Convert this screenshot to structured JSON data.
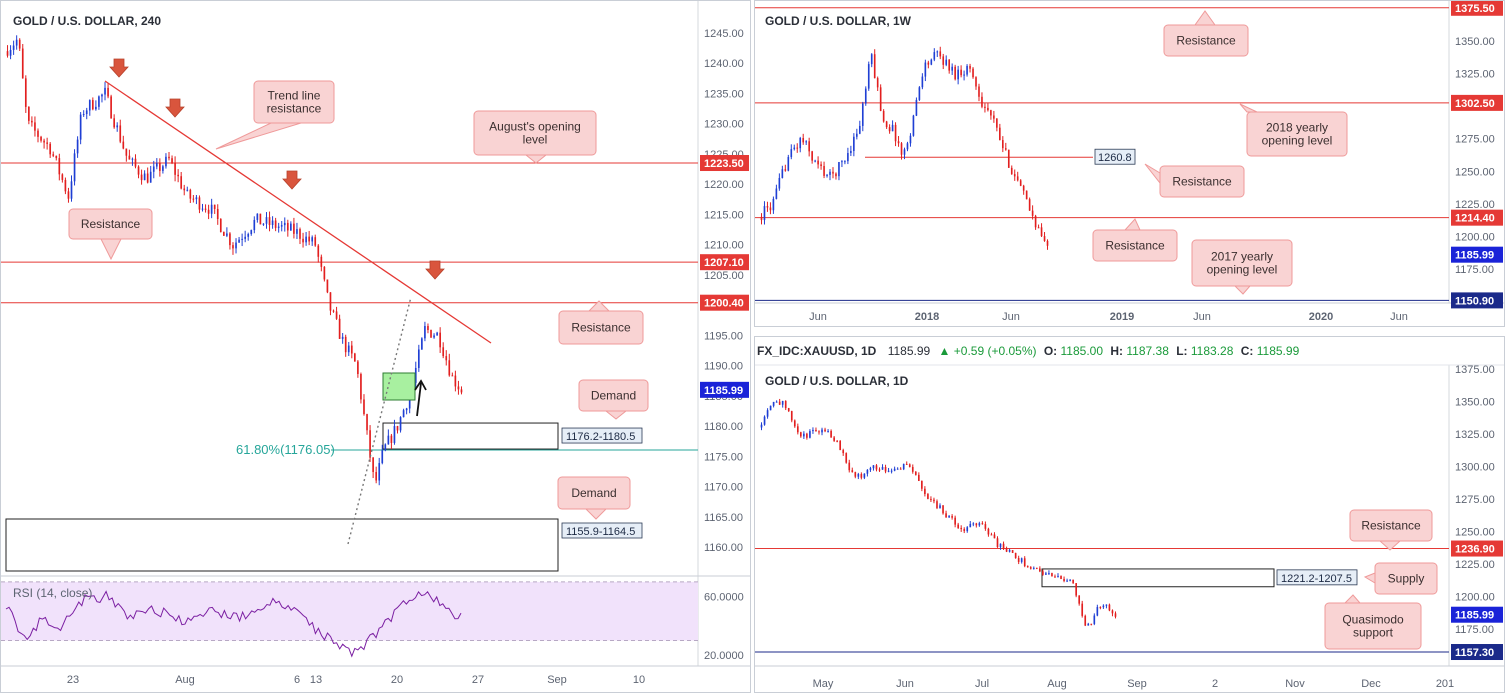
{
  "colors": {
    "up": "#1f3fd4",
    "down": "#e21f1f",
    "level": "#e53935",
    "fib": "#26a69a",
    "callout_bg": "#f9d3d3",
    "callout_border": "#ef9a9a",
    "label_red": "#e53935",
    "label_blue": "#1a23d8",
    "label_navy": "#1b2a8a",
    "rsi_fill": "#f1e2fb",
    "rsi_line": "#7b1fa2",
    "green_box": "#a8f0a0",
    "axis_text": "#5d6472"
  },
  "chart_data": [
    {
      "id": "h4",
      "type": "candlestick",
      "title": "GOLD / U.S. DOLLAR, 240",
      "ylim": [
        1155,
        1248
      ],
      "y_ticks": [
        "1245.00",
        "1240.00",
        "1235.00",
        "1230.00",
        "1225.00",
        "1220.00",
        "1215.00",
        "1210.00",
        "1205.00",
        "1200.00",
        "1195.00",
        "1190.00",
        "1185.00",
        "1180.00",
        "1175.00",
        "1170.00",
        "1165.00",
        "1160.00"
      ],
      "x_ticks": [
        "23",
        "Aug",
        "6",
        "13",
        "20",
        "27",
        "Sep",
        "10"
      ],
      "price_labels": [
        {
          "value": 1223.5,
          "text": "1223.50",
          "style": "red"
        },
        {
          "value": 1207.1,
          "text": "1207.10",
          "style": "red"
        },
        {
          "value": 1200.4,
          "text": "1200.40",
          "style": "red"
        },
        {
          "value": 1185.99,
          "text": "1185.99",
          "style": "blue"
        }
      ],
      "levels": [
        1223.5,
        1207.1,
        1200.4
      ],
      "fib": {
        "value": 1176.05,
        "text": "61.80%(1176.05)"
      },
      "zones": [
        {
          "text": "1176.2-1180.5",
          "low": 1176.2,
          "high": 1180.5
        },
        {
          "text": "1155.9-1164.5",
          "low": 1155.9,
          "high": 1164.5
        }
      ],
      "callouts": [
        "Trend line resistance",
        "August's opening level",
        "Resistance",
        "Resistance",
        "Demand",
        "Demand"
      ],
      "rsi": {
        "label": "RSI (14, close)",
        "ticks": [
          "60.0000",
          "20.0000"
        ],
        "ylim": [
          14,
          72
        ],
        "bands": [
          70,
          30
        ]
      }
    },
    {
      "id": "weekly",
      "type": "candlestick",
      "title": "GOLD / U.S. DOLLAR, 1W",
      "ylim": [
        1147,
        1378
      ],
      "y_ticks": [
        "1350.00",
        "1325.00",
        "1300.00",
        "1275.00",
        "1250.00",
        "1225.00",
        "1200.00",
        "1175.00"
      ],
      "x_ticks": [
        "Jun",
        "2018",
        "Jun",
        "2019",
        "Jun",
        "2020",
        "Jun"
      ],
      "price_labels": [
        {
          "value": 1375.5,
          "text": "1375.50",
          "style": "red"
        },
        {
          "value": 1302.5,
          "text": "1302.50",
          "style": "red"
        },
        {
          "value": 1214.4,
          "text": "1214.40",
          "style": "red"
        },
        {
          "value": 1185.99,
          "text": "1185.99",
          "style": "blue"
        },
        {
          "value": 1150.9,
          "text": "1150.90",
          "style": "navy"
        }
      ],
      "levels": [
        1375.5,
        1302.5,
        1214.4
      ],
      "support": 1150.9,
      "marker": {
        "value": 1260.8,
        "text": "1260.8"
      },
      "callouts": [
        "Resistance",
        "2018 yearly opening level",
        "Resistance",
        "Resistance",
        "2017 yearly opening level"
      ]
    },
    {
      "id": "daily",
      "type": "candlestick",
      "title": "GOLD / U.S. DOLLAR, 1D",
      "ohlc_header": {
        "symbol": "FX_IDC:XAUUSD, 1D",
        "last": "1185.99",
        "change": "▲ +0.59 (+0.05%)",
        "o_label": "O:",
        "o": "1185.00",
        "h_label": "H:",
        "h": "1187.38",
        "l_label": "L:",
        "l": "1183.28",
        "c_label": "C:",
        "c": "1185.99"
      },
      "ylim": [
        1147,
        1378
      ],
      "y_ticks": [
        "1375.00",
        "1350.00",
        "1325.00",
        "1300.00",
        "1275.00",
        "1250.00",
        "1225.00",
        "1200.00",
        "1175.00"
      ],
      "x_ticks": [
        "May",
        "Jun",
        "Jul",
        "Aug",
        "Sep",
        "2",
        "Nov",
        "Dec",
        "201"
      ],
      "price_labels": [
        {
          "value": 1236.9,
          "text": "1236.90",
          "style": "red"
        },
        {
          "value": 1185.99,
          "text": "1185.99",
          "style": "blue"
        },
        {
          "value": 1157.3,
          "text": "1157.30",
          "style": "navy"
        }
      ],
      "levels": [
        1236.9
      ],
      "support": 1157.3,
      "zones": [
        {
          "text": "1221.2-1207.5",
          "low": 1207.5,
          "high": 1221.2
        }
      ],
      "callouts": [
        "Resistance",
        "Supply",
        "Quasimodo support"
      ]
    }
  ]
}
